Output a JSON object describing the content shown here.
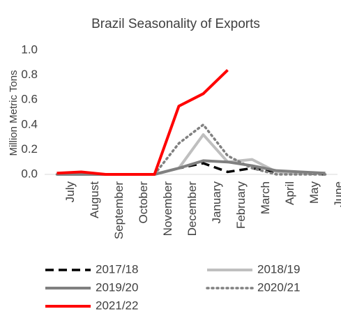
{
  "chart_data": {
    "type": "line",
    "title": "Brazil Seasonality of Exports",
    "y_label": "Million Metric Tons",
    "categories": [
      "July",
      "August",
      "September",
      "October",
      "November",
      "December",
      "January",
      "February",
      "March",
      "April",
      "May",
      "June"
    ],
    "ylim": [
      0,
      1.0
    ],
    "yticks": [
      {
        "value": 0,
        "label": "0.0"
      },
      0.2,
      0.4,
      0.6,
      0.8,
      {
        "value": 1.0,
        "label": "1.0"
      }
    ],
    "legend": "bottom",
    "series": [
      {
        "name": "2017/18",
        "color": "#000000",
        "dash": "dash",
        "values": [
          0,
          0,
          0,
          0,
          0,
          0.05,
          0.09,
          0.02,
          0.05,
          0.02,
          0.01,
          0
        ]
      },
      {
        "name": "2018/19",
        "color": "#bfbfbf",
        "dash": "solid",
        "values": [
          0,
          0,
          0,
          0,
          0,
          0.05,
          0.32,
          0.1,
          0.12,
          0.02,
          0.01,
          0.01
        ]
      },
      {
        "name": "2019/20",
        "color": "#808080",
        "dash": "solid",
        "values": [
          0,
          0,
          0,
          0,
          0,
          0.05,
          0.11,
          0.1,
          0.07,
          0.03,
          0.02,
          0.01
        ]
      },
      {
        "name": "2020/21",
        "color": "#808080",
        "dash": "dot",
        "values": [
          0,
          0,
          0,
          0,
          0,
          0.25,
          0.4,
          0.15,
          0.05,
          0,
          0,
          0
        ]
      },
      {
        "name": "2021/22",
        "color": "#ff0000",
        "dash": "solid",
        "values": [
          0.01,
          0.02,
          0,
          0,
          0,
          0.55,
          0.65,
          0.84,
          null,
          null,
          null,
          null
        ]
      }
    ]
  }
}
